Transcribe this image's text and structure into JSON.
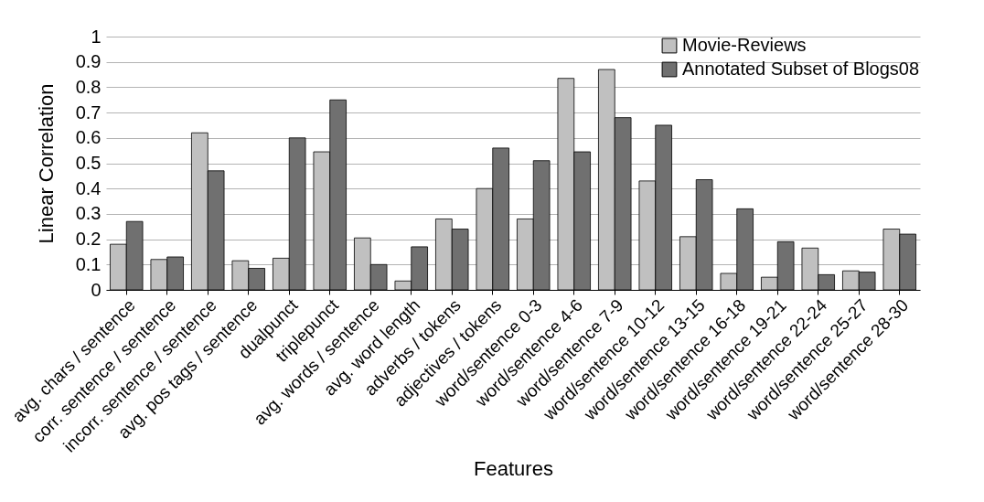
{
  "chart_data": {
    "type": "bar",
    "xlabel": "Features",
    "ylabel": "Linear Correlation",
    "categories": [
      "avg. chars / sentence",
      "corr. sentence / sentence",
      "incorr. sentence / sentence",
      "avg. pos tags / sentence",
      "dualpunct",
      "triplepunct",
      "avg. words / sentence",
      "avg. word length",
      "adverbs / tokens",
      "adjectives / tokens",
      "word/sentence 0-3",
      "word/sentence 4-6",
      "word/sentence 7-9",
      "word/sentence 10-12",
      "word/sentence 13-15",
      "word/sentence 16-18",
      "word/sentence 19-21",
      "word/sentence 22-24",
      "word/sentence 25-27",
      "word/sentence 28-30"
    ],
    "series": [
      {
        "name": "Movie-Reviews",
        "color": "#c0c0c0",
        "values": [
          0.18,
          0.12,
          0.62,
          0.115,
          0.125,
          0.545,
          0.205,
          0.035,
          0.28,
          0.4,
          0.28,
          0.835,
          0.87,
          0.43,
          0.21,
          0.065,
          0.05,
          0.165,
          0.075,
          0.24
        ]
      },
      {
        "name": "Annotated Subset of Blogs08",
        "color": "#707070",
        "values": [
          0.27,
          0.13,
          0.47,
          0.085,
          0.6,
          0.75,
          0.1,
          0.17,
          0.24,
          0.56,
          0.51,
          0.545,
          0.68,
          0.65,
          0.435,
          0.32,
          0.19,
          0.06,
          0.07,
          0.22
        ]
      }
    ],
    "ylim": [
      0,
      1
    ],
    "yticks": [
      0,
      0.1,
      0.2,
      0.3,
      0.4,
      0.5,
      0.6,
      0.7,
      0.8,
      0.9,
      1
    ],
    "grid": "y",
    "legend": "top right"
  }
}
